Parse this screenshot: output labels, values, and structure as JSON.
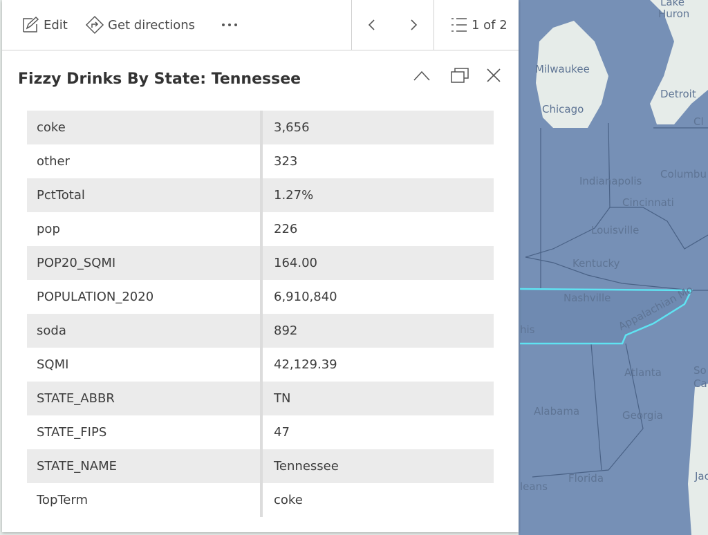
{
  "toolbar": {
    "edit": "Edit",
    "directions": "Get directions",
    "pager": "1 of 2"
  },
  "header": {
    "title": "Fizzy Drinks By State: Tennessee"
  },
  "table": {
    "rows": [
      [
        "coke",
        "3,656"
      ],
      [
        "other",
        "323"
      ],
      [
        "PctTotal",
        "1.27%"
      ],
      [
        "pop",
        "226"
      ],
      [
        "POP20_SQMI",
        "164.00"
      ],
      [
        "POPULATION_2020",
        "6,910,840"
      ],
      [
        "soda",
        "892"
      ],
      [
        "SQMI",
        "42,129.39"
      ],
      [
        "STATE_ABBR",
        "TN"
      ],
      [
        "STATE_FIPS",
        "47"
      ],
      [
        "STATE_NAME",
        "Tennessee"
      ],
      [
        "TopTerm",
        "coke"
      ]
    ]
  },
  "map": {
    "labels": [
      "Lake",
      "Huron",
      "Milwaukee",
      "Detroit",
      "Chicago",
      "Cl",
      "Indianapolis",
      "Columbu",
      "Cincinnati",
      "Louisville",
      "Kentucky",
      "Nashville",
      "Appalachian Mo",
      "his",
      "Atlanta",
      "So",
      "Ca",
      "Alabama",
      "Georgia",
      "Florida",
      "leans",
      "Jac"
    ]
  }
}
